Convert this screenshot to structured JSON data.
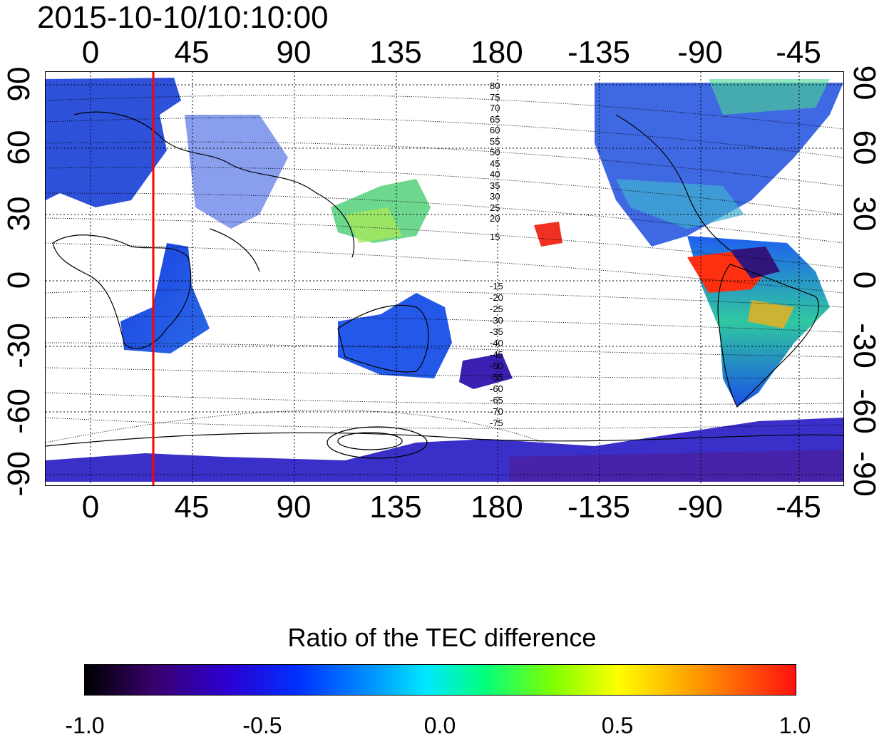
{
  "title": "2015-10-10/10:10:00",
  "top_axis_labels": [
    "0",
    "45",
    "90",
    "135",
    "180",
    "-135",
    "-90",
    "-45"
  ],
  "bottom_axis_labels": [
    "0",
    "45",
    "90",
    "135",
    "180",
    "-135",
    "-90",
    "-45"
  ],
  "left_axis_labels": [
    "90",
    "60",
    "30",
    "0",
    "-30",
    "-60",
    "-90"
  ],
  "right_axis_labels": [
    "90",
    "60",
    "30",
    "0",
    "-30",
    "-60",
    "-90"
  ],
  "contour_labels_north": [
    "80",
    "75",
    "70",
    "65",
    "60",
    "55",
    "50",
    "45",
    "40",
    "35",
    "30",
    "25",
    "20",
    "15"
  ],
  "contour_labels_south": [
    "-15",
    "-20",
    "-25",
    "-30",
    "-35",
    "-40",
    "-45",
    "-50",
    "-55",
    "-60",
    "-65",
    "-70",
    "-75"
  ],
  "colorbar": {
    "title": "Ratio of the TEC difference",
    "ticks": [
      "-1.0",
      "-0.5",
      "0.0",
      "0.5",
      "1.0"
    ],
    "range": [
      -1.0,
      1.0
    ]
  },
  "marker_line": {
    "longitude": 30,
    "color": "#ff0000"
  }
}
